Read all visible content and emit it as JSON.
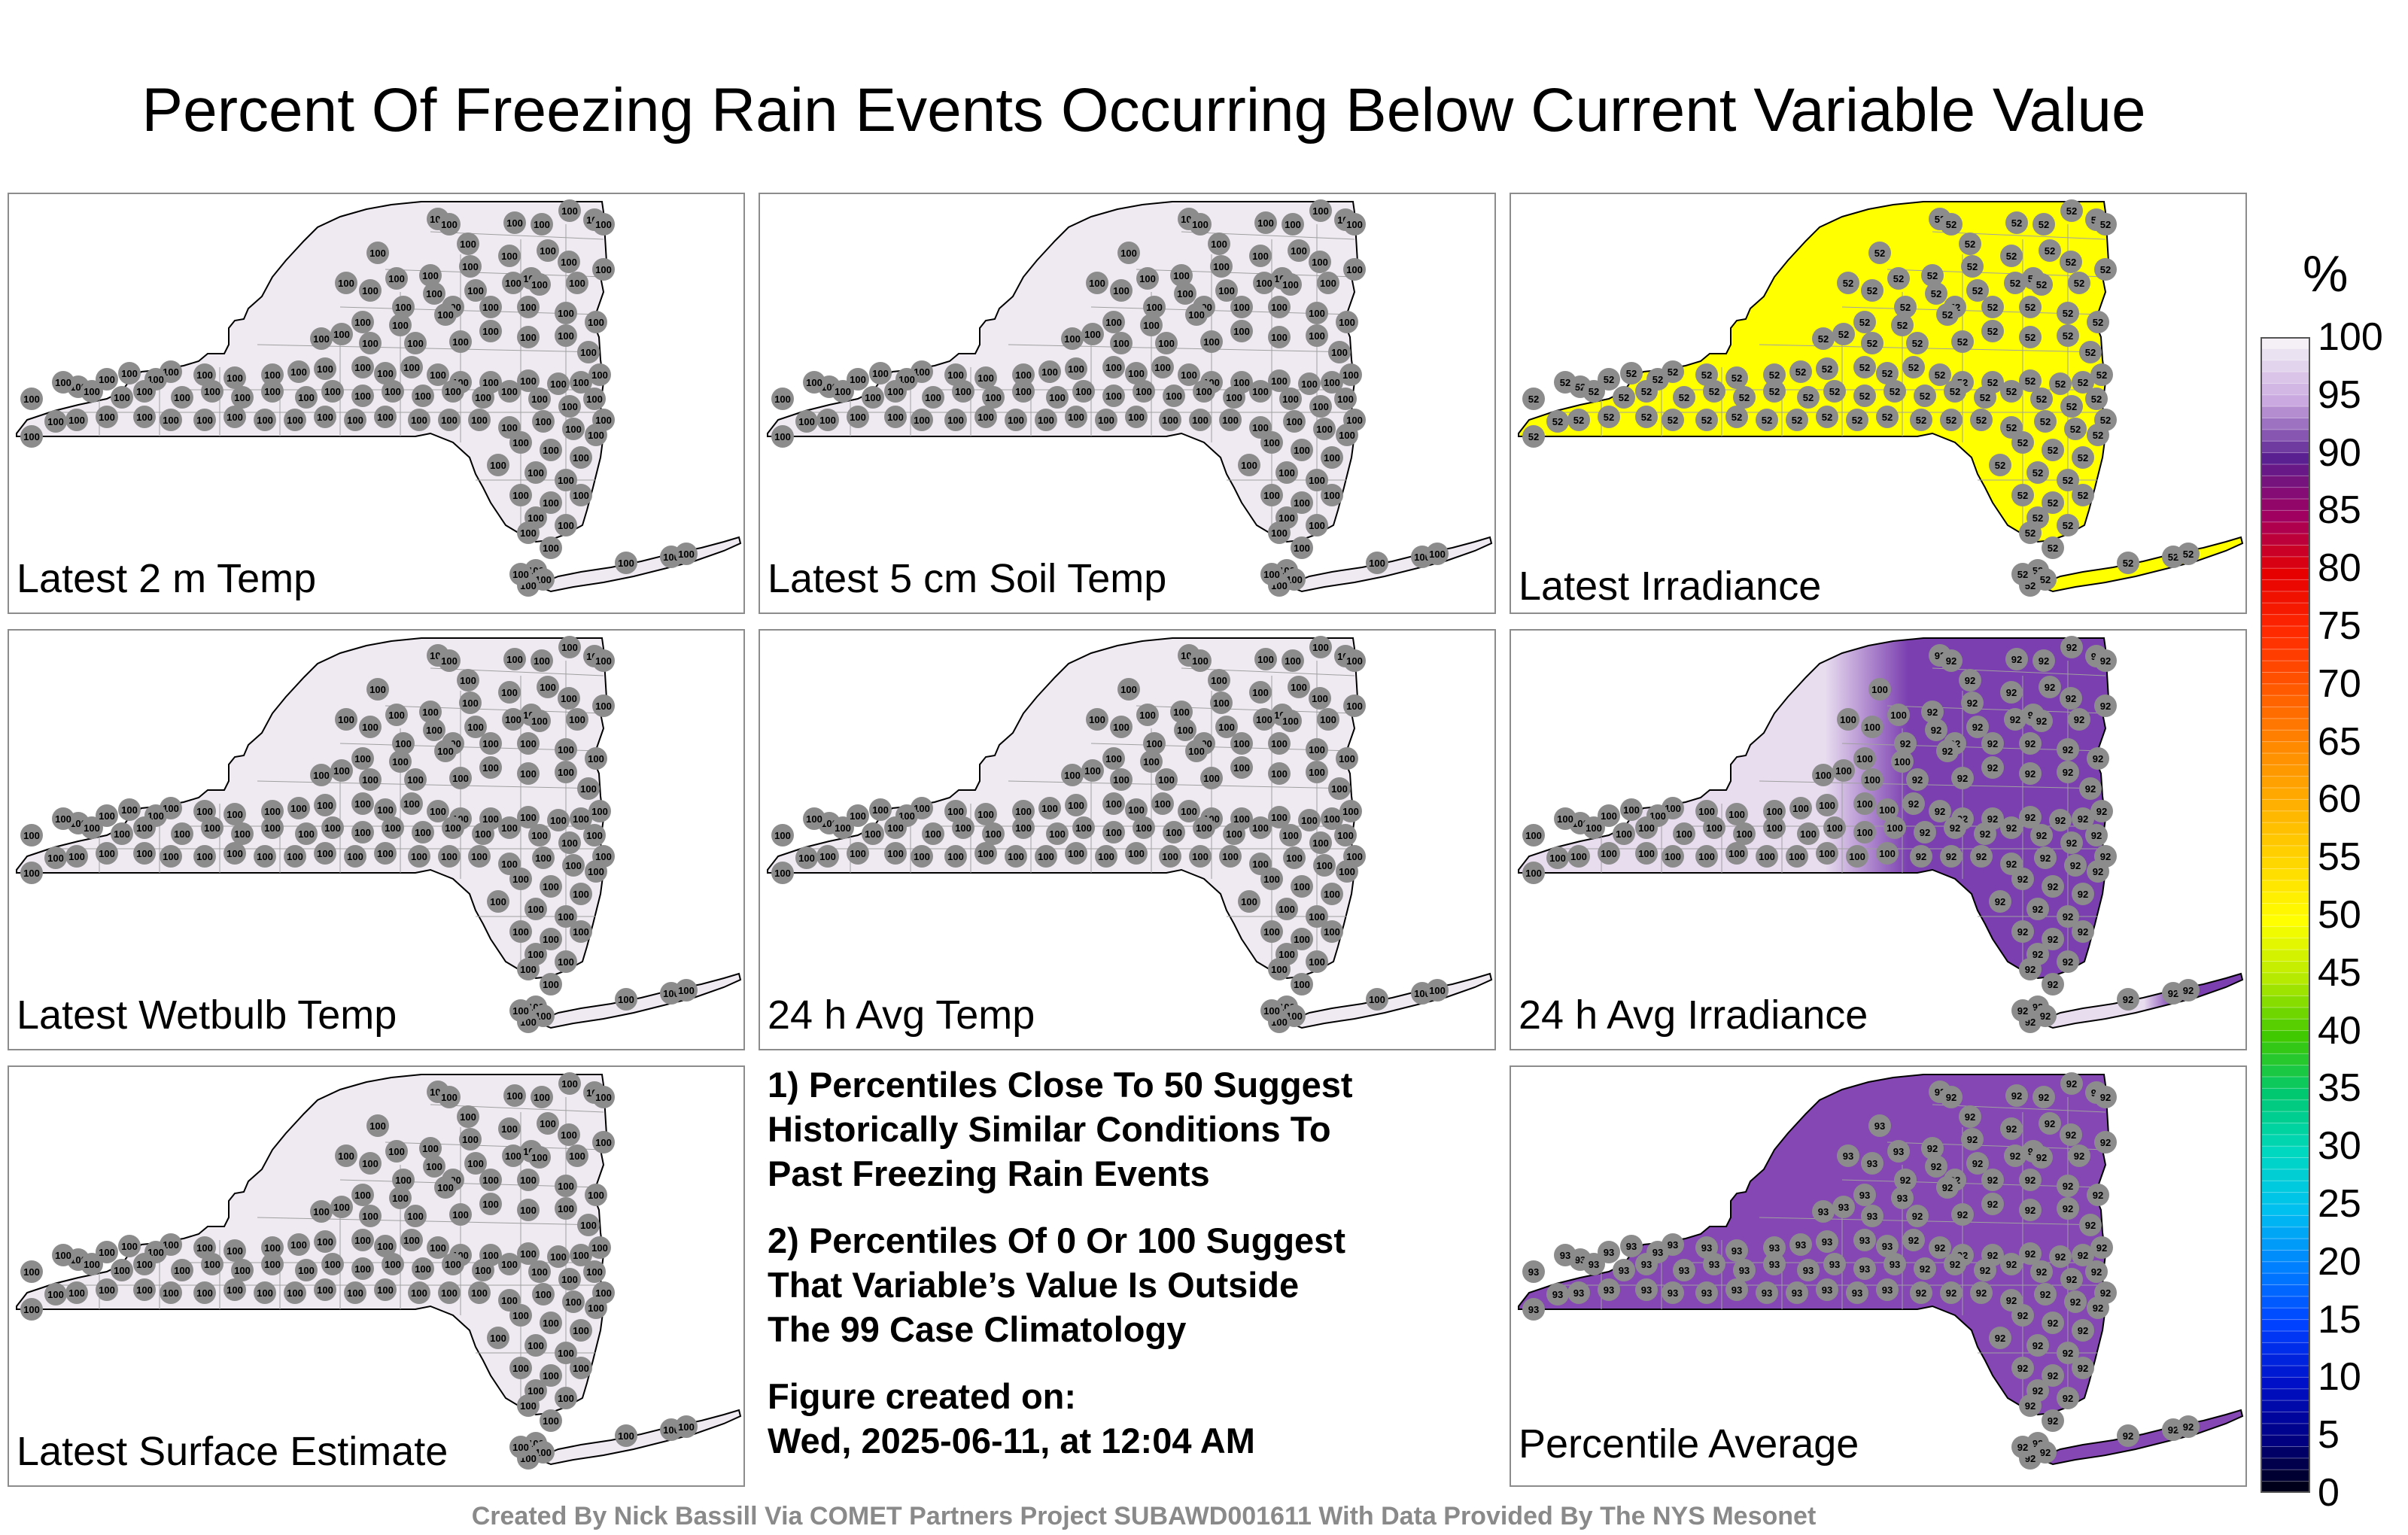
{
  "title": "Percent Of Freezing Rain Events Occurring Below Current Variable Value",
  "panels": [
    {
      "label": "Latest 2 m Temp",
      "fill": "#efeaf2",
      "default_value": "100",
      "mode": "uniform"
    },
    {
      "label": "Latest 5 cm Soil Temp",
      "fill": "#efeaf2",
      "default_value": "100",
      "mode": "uniform"
    },
    {
      "label": "Latest Irradiance",
      "fill": "#ffff00",
      "default_value": "52",
      "mode": "uniform"
    },
    {
      "label": "Latest Wetbulb Temp",
      "fill": "#efeaf2",
      "default_value": "100",
      "mode": "uniform"
    },
    {
      "label": "24 h Avg Temp",
      "fill": "#efeaf2",
      "default_value": "100",
      "mode": "uniform"
    },
    {
      "label": "24 h Avg Irradiance",
      "fill": "#e8dcef",
      "east_fill": "#7b3fb0",
      "west_value": "100",
      "east_value": "92",
      "mode": "split"
    },
    {
      "label": "Latest Surface Estimate",
      "fill": "#efeaf2",
      "default_value": "100",
      "mode": "uniform"
    },
    {
      "label": "Percentile Average",
      "fill": "#8447b3",
      "west_value": "93",
      "east_value": "92",
      "mode": "avg"
    }
  ],
  "notes": {
    "p1": [
      "1) Percentiles Close To 50 Suggest",
      "Historically Similar Conditions To",
      "Past Freezing Rain Events"
    ],
    "p2": [
      "2) Percentiles Of 0 Or 100 Suggest",
      "That Variable’s Value Is Outside",
      "The 99 Case Climatology"
    ],
    "p3": [
      "Figure created on:",
      "Wed, 2025-06-11, at 12:04 AM"
    ]
  },
  "colorbar": {
    "unit": "%",
    "ticks": [
      "100",
      "95",
      "90",
      "85",
      "80",
      "75",
      "70",
      "65",
      "60",
      "55",
      "50",
      "45",
      "40",
      "35",
      "30",
      "25",
      "20",
      "15",
      "10",
      "5",
      "0"
    ]
  },
  "footer": "Created By Nick Bassill Via COMET Partners Project SUBAWD001611 With Data Provided By The NYS Mesonet",
  "colors": {
    "station_marker": "#8c8c8c",
    "boundary": "#000000",
    "county_lines": "#a0a0a0"
  }
}
